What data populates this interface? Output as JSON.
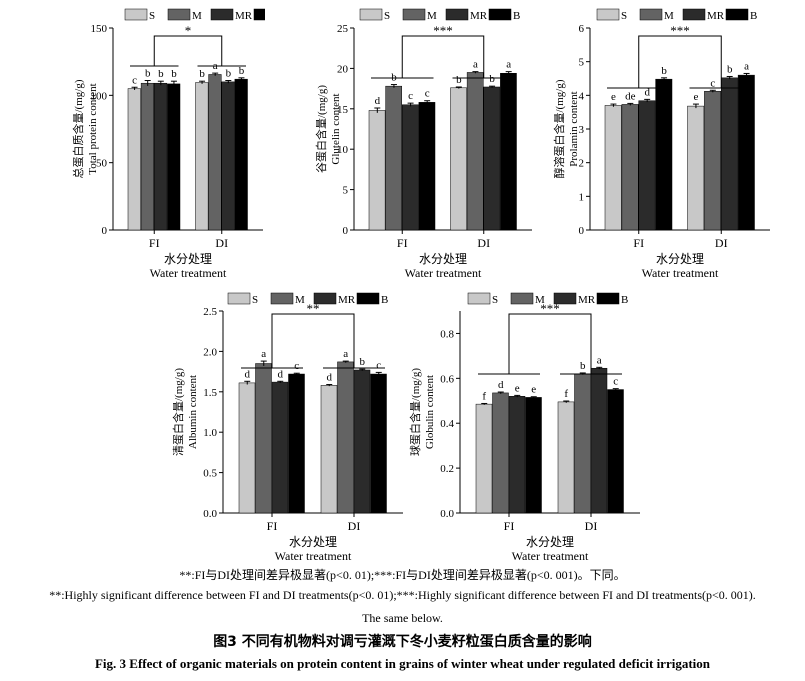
{
  "series_names": [
    "S",
    "M",
    "MR",
    "B"
  ],
  "colors": {
    "S": "#c8c8c8",
    "M": "#636363",
    "MR": "#2b2b2b",
    "B": "#000000"
  },
  "chart_data": [
    {
      "id": "total",
      "type": "bar",
      "ylabel_cn": "总蛋白质含量/(mg/g)",
      "ylabel_en": "Total protein content",
      "xlabel_cn": "水分处理",
      "xlabel_en": "Water treatment",
      "categories": [
        "FI",
        "DI"
      ],
      "ylim": [
        0,
        150
      ],
      "yticks": [
        0,
        50,
        100,
        150
      ],
      "sig": "*",
      "series": [
        {
          "name": "S",
          "values": [
            105,
            109.5
          ],
          "errors": [
            1,
            1
          ],
          "letters": [
            "c",
            "b"
          ]
        },
        {
          "name": "M",
          "values": [
            109,
            115.5
          ],
          "errors": [
            2,
            1
          ],
          "letters": [
            "b",
            "a"
          ]
        },
        {
          "name": "MR",
          "values": [
            109,
            110
          ],
          "errors": [
            1.5,
            1
          ],
          "letters": [
            "b",
            "b"
          ]
        },
        {
          "name": "B",
          "values": [
            108.5,
            112
          ],
          "errors": [
            2,
            1
          ],
          "letters": [
            "b",
            "b"
          ]
        }
      ]
    },
    {
      "id": "glutelin",
      "type": "bar",
      "ylabel_cn": "谷蛋白含量/(mg/g)",
      "ylabel_en": "Glutelin content",
      "xlabel_cn": "水分处理",
      "xlabel_en": "Water treatment",
      "categories": [
        "FI",
        "DI"
      ],
      "ylim": [
        0,
        25
      ],
      "yticks": [
        0,
        5,
        10,
        15,
        20,
        25
      ],
      "sig": "***",
      "series": [
        {
          "name": "S",
          "values": [
            14.8,
            17.6
          ],
          "errors": [
            0.3,
            0.1
          ],
          "letters": [
            "d",
            "b"
          ]
        },
        {
          "name": "M",
          "values": [
            17.8,
            19.5
          ],
          "errors": [
            0.2,
            0.1
          ],
          "letters": [
            "b",
            "a"
          ]
        },
        {
          "name": "MR",
          "values": [
            15.5,
            17.7
          ],
          "errors": [
            0.2,
            0.1
          ],
          "letters": [
            "c",
            "b"
          ]
        },
        {
          "name": "B",
          "values": [
            15.8,
            19.4
          ],
          "errors": [
            0.2,
            0.2
          ],
          "letters": [
            "c",
            "a"
          ]
        }
      ]
    },
    {
      "id": "prolamin",
      "type": "bar",
      "ylabel_cn": "醇溶蛋白含量/(mg/g)",
      "ylabel_en": "Prolamin content",
      "xlabel_cn": "水分处理",
      "xlabel_en": "Water treatment",
      "categories": [
        "FI",
        "DI"
      ],
      "ylim": [
        0,
        6
      ],
      "yticks": [
        0,
        1,
        2,
        3,
        4,
        5,
        6
      ],
      "sig": "***",
      "series": [
        {
          "name": "S",
          "values": [
            3.7,
            3.68
          ],
          "errors": [
            0.04,
            0.06
          ],
          "letters": [
            "e",
            "e"
          ]
        },
        {
          "name": "M",
          "values": [
            3.73,
            4.12
          ],
          "errors": [
            0.03,
            0.03
          ],
          "letters": [
            "de",
            "c"
          ]
        },
        {
          "name": "MR",
          "values": [
            3.84,
            4.52
          ],
          "errors": [
            0.04,
            0.04
          ],
          "letters": [
            "d",
            "b"
          ]
        },
        {
          "name": "B",
          "values": [
            4.48,
            4.6
          ],
          "errors": [
            0.04,
            0.05
          ],
          "letters": [
            "b",
            "a"
          ]
        }
      ]
    },
    {
      "id": "albumin",
      "type": "bar",
      "ylabel_cn": "清蛋白含量/(mg/g)",
      "ylabel_en": "Albumin content",
      "xlabel_cn": "水分处理",
      "xlabel_en": "Water treatment",
      "categories": [
        "FI",
        "DI"
      ],
      "ylim": [
        0,
        2.5
      ],
      "yticks": [
        0,
        0.5,
        1.0,
        1.5,
        2.0,
        2.5
      ],
      "yticklabels": [
        "0.0",
        "0.5",
        "1.0",
        "1.5",
        "2.0",
        "2.5"
      ],
      "sig": "**",
      "series": [
        {
          "name": "S",
          "values": [
            1.61,
            1.58
          ],
          "errors": [
            0.02,
            0.01
          ],
          "letters": [
            "d",
            "d"
          ]
        },
        {
          "name": "M",
          "values": [
            1.85,
            1.87
          ],
          "errors": [
            0.03,
            0.01
          ],
          "letters": [
            "a",
            "a"
          ]
        },
        {
          "name": "MR",
          "values": [
            1.62,
            1.77
          ],
          "errors": [
            0.01,
            0.01
          ],
          "letters": [
            "d",
            "b"
          ]
        },
        {
          "name": "B",
          "values": [
            1.72,
            1.72
          ],
          "errors": [
            0.01,
            0.02
          ],
          "letters": [
            "c",
            "c"
          ]
        }
      ]
    },
    {
      "id": "globulin",
      "type": "bar",
      "ylabel_cn": "球蛋白含量/(mg/g)",
      "ylabel_en": "Globulin content",
      "xlabel_cn": "水分处理",
      "xlabel_en": "Water treatment",
      "categories": [
        "FI",
        "DI"
      ],
      "ylim": [
        0,
        0.9
      ],
      "yticks": [
        0,
        0.2,
        0.4,
        0.6,
        0.8
      ],
      "yticklabels": [
        "0.0",
        "0.2",
        "0.4",
        "0.6",
        "0.8"
      ],
      "sig": "***",
      "series": [
        {
          "name": "S",
          "values": [
            0.485,
            0.495
          ],
          "errors": [
            0.003,
            0.004
          ],
          "letters": [
            "f",
            "f"
          ]
        },
        {
          "name": "M",
          "values": [
            0.535,
            0.62
          ],
          "errors": [
            0.004,
            0.004
          ],
          "letters": [
            "d",
            "b"
          ]
        },
        {
          "name": "MR",
          "values": [
            0.52,
            0.645
          ],
          "errors": [
            0.004,
            0.004
          ],
          "letters": [
            "e",
            "a"
          ]
        },
        {
          "name": "B",
          "values": [
            0.515,
            0.55
          ],
          "errors": [
            0.003,
            0.004
          ],
          "letters": [
            "e",
            "c"
          ]
        }
      ]
    }
  ],
  "notes": {
    "line1": "**:FI与DI处理间差异极显著(p<0. 01);***:FI与DI处理间差异极显著(p<0. 001)。下同。",
    "line2": "**:Highly significant difference between FI and DI treatments(p<0. 01);***:Highly significant difference between FI and DI treatments(p<0. 001).",
    "line3": "The same below."
  },
  "caption": {
    "cn": "图3 不同有机物料对调亏灌溉下冬小麦籽粒蛋白质含量的影响",
    "en": "Fig. 3 Effect of organic materials on protein content in grains of winter wheat under regulated deficit irrigation"
  }
}
